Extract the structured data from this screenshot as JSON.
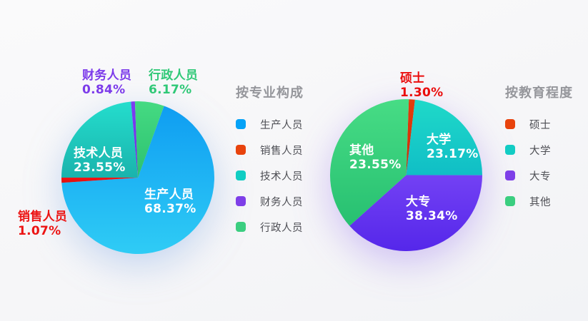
{
  "background_color": "#f6f6f8",
  "chart_data": [
    {
      "type": "pie",
      "title": "按专业构成",
      "legend_position": "right",
      "start_angle_cw_from_top": 20,
      "remainder_fill": false,
      "slices": [
        {
          "slug": "production-staff",
          "name": "生产人员",
          "value": 68.37,
          "label": "68.37%",
          "label_placement": "inside",
          "color_start": "#0f9df2",
          "color_end": "#2fccf5",
          "legend_color": "#05a2f7"
        },
        {
          "slug": "sales-staff",
          "name": "销售人员",
          "value": 1.07,
          "label": "1.07%",
          "label_placement": "outside",
          "label_color": "#ec1413",
          "color_start": "#f51515",
          "color_end": "#da0f0f",
          "legend_color": "#e8430d"
        },
        {
          "slug": "technical-staff",
          "name": "技术人员",
          "value": 23.55,
          "label": "23.55%",
          "label_placement": "inside",
          "color_start": "#24ddcd",
          "color_end": "#1ab3ac",
          "legend_color": "#10cdc3"
        },
        {
          "slug": "finance-staff",
          "name": "财务人员",
          "value": 0.84,
          "label": "0.84%",
          "label_placement": "outside",
          "label_color": "#7c3bea",
          "color_start": "#7d3df2",
          "color_end": "#6c30e2",
          "legend_color": "#7e3fe8"
        },
        {
          "slug": "admin-staff",
          "name": "行政人员",
          "value": 6.17,
          "label": "6.17%",
          "label_placement": "outside",
          "label_color": "#2fc877",
          "color_start": "#45da82",
          "color_end": "#2cc170",
          "legend_color": "#3bce80"
        }
      ]
    },
    {
      "type": "pie",
      "title": "按教育程度",
      "legend_position": "right",
      "start_angle_cw_from_top": 2,
      "remainder_fill": true,
      "slices": [
        {
          "slug": "master-degree",
          "name": "硕士",
          "value": 1.3,
          "label": "1.30%",
          "label_placement": "outside",
          "label_color": "#ea0d0d",
          "color_start": "#e53c0c",
          "color_end": "#c72e08",
          "legend_color": "#e8430d"
        },
        {
          "slug": "university",
          "name": "大学",
          "value": 23.17,
          "label": "23.17%",
          "label_placement": "inside",
          "color_start": "#1fd9c9",
          "color_end": "#10bec6",
          "legend_color": "#12ccc4"
        },
        {
          "slug": "junior-college",
          "name": "大专",
          "value": 38.34,
          "label": "38.34%",
          "label_placement": "inside",
          "color_start": "#7341f4",
          "color_end": "#5527ea",
          "legend_color": "#7e3fe8"
        },
        {
          "slug": "other",
          "name": "其他",
          "value": 23.55,
          "label": "23.55%",
          "label_placement": "inside",
          "color_start": "#47dc85",
          "color_end": "#27c071",
          "legend_color": "#3bce80"
        }
      ]
    }
  ]
}
